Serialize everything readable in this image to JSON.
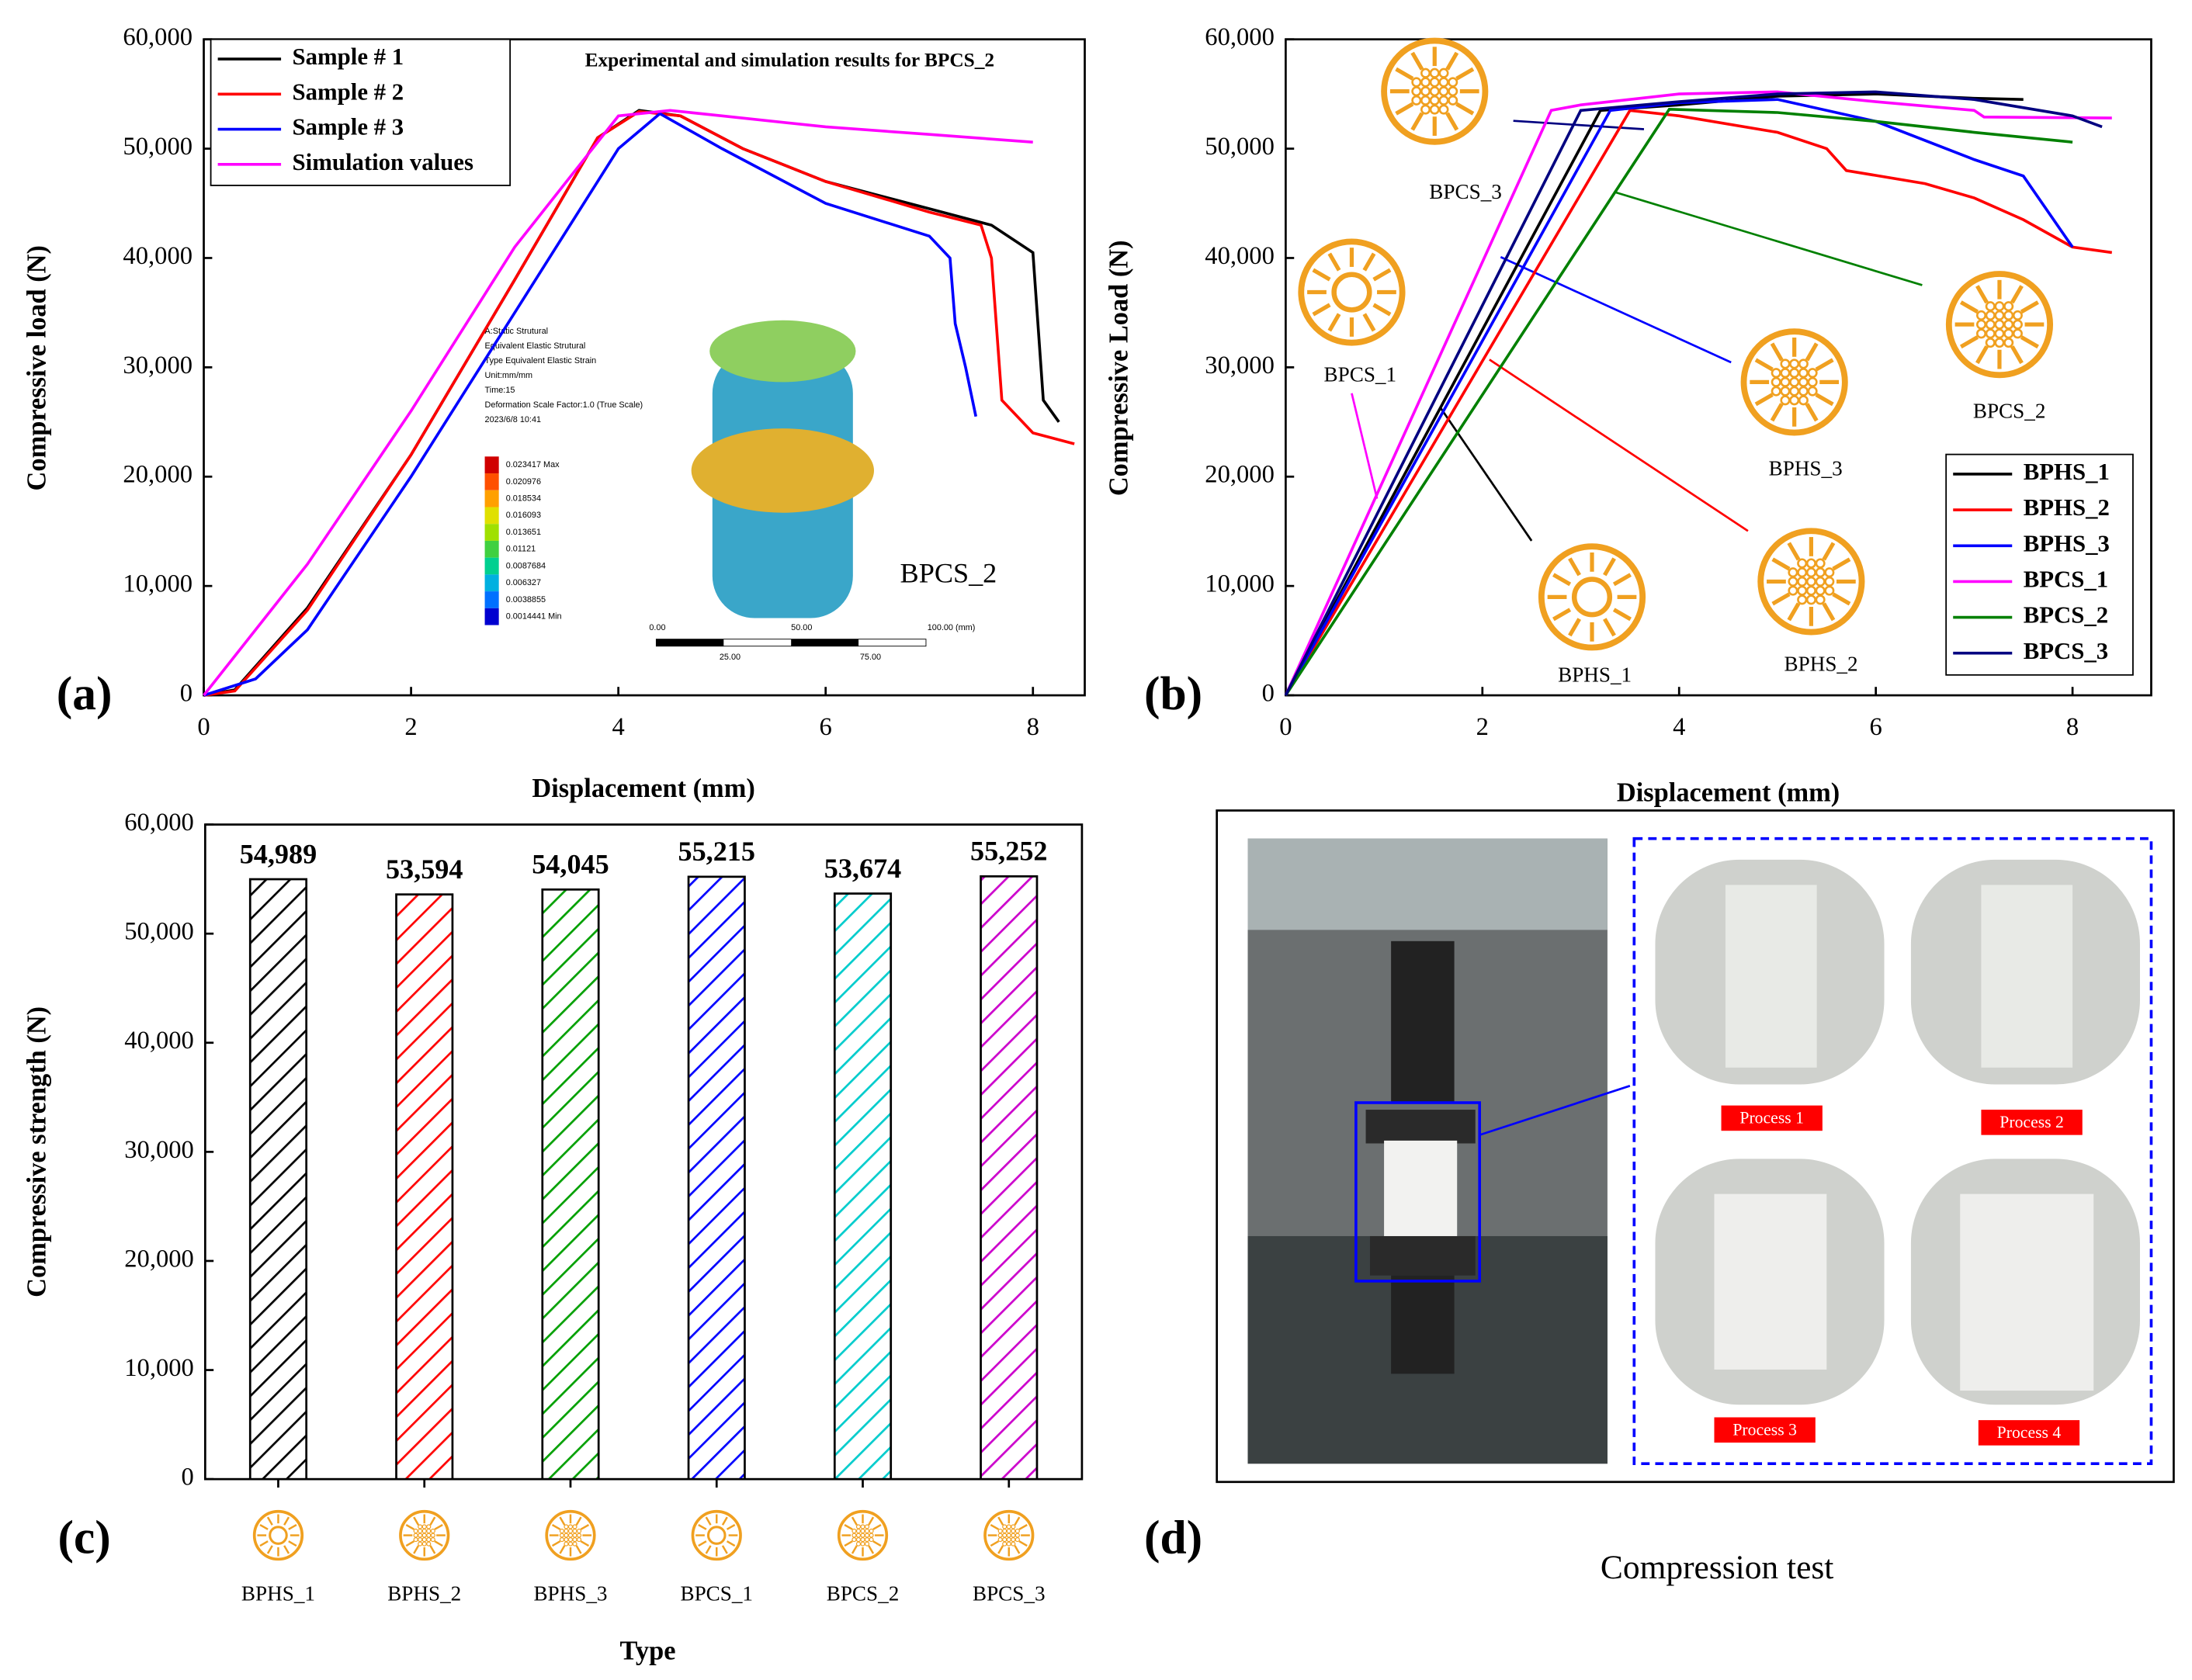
{
  "chart_data": [
    {
      "type": "line",
      "panel_label": "(a)",
      "title": "Experimental and simulation results for BPCS_2",
      "xlabel": "Displacement (mm)",
      "ylabel": "Compressive load (N)",
      "xlim": [
        0,
        8.5
      ],
      "xticks": [
        0,
        2,
        4,
        6,
        8
      ],
      "ylim": [
        0,
        60000
      ],
      "yticks": [
        0,
        {
          "value": 10000,
          "label": "10,000"
        },
        {
          "value": 20000,
          "label": "20,000"
        },
        {
          "value": 30000,
          "label": "30,000"
        },
        {
          "value": 40000,
          "label": "40,000"
        },
        {
          "value": 50000,
          "label": "50,000"
        },
        {
          "value": 60000,
          "label": "60,000"
        }
      ],
      "legend": "upper left",
      "annotations": [
        "BPCS_2"
      ],
      "inset_texts": [
        "A:Static Strutural",
        "Equivalent Elastic Strutural",
        "Type Equivalent Elastic Strain",
        "Unit:mm/mm",
        "Time:15",
        "Deformation Scale Factor:1.0 (True Scale)",
        "2023/6/8 10:41"
      ],
      "inset_scale": [
        "0.023417 Max",
        "0.020976",
        "0.018534",
        "0.016093",
        "0.013651",
        "0.01121",
        "0.0087684",
        "0.006327",
        "0.0038855",
        "0.0014441 Min"
      ],
      "inset_ruler": [
        "0.00",
        "50.00",
        "100.00 (mm)",
        "25.00",
        "75.00"
      ],
      "series": [
        {
          "name": "Sample # 1",
          "color": "#000000",
          "x": [
            0,
            0.3,
            1,
            2,
            3,
            3.8,
            4.2,
            4.6,
            5.2,
            6,
            7,
            7.6,
            8,
            8.1,
            8.25
          ],
          "values": [
            0,
            500,
            8000,
            22000,
            38000,
            51000,
            53500,
            53000,
            50000,
            47000,
            44500,
            43000,
            40500,
            27000,
            25000
          ]
        },
        {
          "name": "Sample # 2",
          "color": "#ff0000",
          "x": [
            0,
            0.3,
            1,
            2,
            3,
            3.8,
            4.2,
            4.6,
            5.2,
            6,
            7,
            7.5,
            7.6,
            7.7,
            8,
            8.4
          ],
          "values": [
            0,
            400,
            7800,
            22000,
            38000,
            51000,
            53400,
            53000,
            50000,
            47000,
            44200,
            43000,
            40000,
            27000,
            24000,
            23000
          ]
        },
        {
          "name": "Sample # 3",
          "color": "#0000ff",
          "x": [
            0,
            0.5,
            1,
            2,
            3,
            4,
            4.4,
            5,
            6,
            7,
            7.2,
            7.25,
            7.35,
            7.45
          ],
          "values": [
            0,
            1500,
            6000,
            20000,
            35000,
            50000,
            53200,
            50000,
            45000,
            42000,
            40000,
            34000,
            30000,
            25500
          ]
        },
        {
          "name": "Simulation values",
          "color": "#ff00ff",
          "x": [
            0,
            1,
            2,
            3,
            4,
            4.5,
            5,
            6,
            7,
            8
          ],
          "values": [
            0,
            12000,
            26000,
            41000,
            53000,
            53500,
            53000,
            52000,
            51300,
            50600
          ]
        }
      ]
    },
    {
      "type": "line",
      "panel_label": "(b)",
      "xlabel": "Displacement (mm)",
      "ylabel": "Compressive Load (N)",
      "xlim": [
        0,
        8.8
      ],
      "xticks": [
        0,
        2,
        4,
        6,
        8
      ],
      "ylim": [
        0,
        60000
      ],
      "yticks": [
        0,
        {
          "value": 10000,
          "label": "10,000"
        },
        {
          "value": 20000,
          "label": "20,000"
        },
        {
          "value": 30000,
          "label": "30,000"
        },
        {
          "value": 40000,
          "label": "40,000"
        },
        {
          "value": 50000,
          "label": "50,000"
        },
        {
          "value": 60000,
          "label": "60,000"
        }
      ],
      "legend": "lower right",
      "annotations": [
        "BPCS_3",
        "BPCS_1",
        "BPHS_3",
        "BPCS_2",
        "BPHS_1",
        "BPHS_2"
      ],
      "series": [
        {
          "name": "BPHS_1",
          "color": "#000000",
          "x": [
            0,
            3.2,
            4,
            5,
            6,
            7,
            7.5
          ],
          "values": [
            0,
            53500,
            54000,
            54800,
            55000,
            54600,
            54500
          ]
        },
        {
          "name": "BPHS_2",
          "color": "#ff0000",
          "x": [
            0,
            3.5,
            4,
            5,
            5.5,
            5.7,
            6.5,
            7,
            7.5,
            8,
            8.4
          ],
          "values": [
            0,
            53500,
            53000,
            51500,
            50000,
            48000,
            46800,
            45500,
            43500,
            41000,
            40500
          ]
        },
        {
          "name": "BPHS_3",
          "color": "#0000ff",
          "x": [
            0,
            3.3,
            4,
            5,
            6,
            7,
            7.5,
            8
          ],
          "values": [
            0,
            53500,
            54200,
            54500,
            52500,
            49000,
            47500,
            41000
          ]
        },
        {
          "name": "BPCS_1",
          "color": "#ff00ff",
          "x": [
            0,
            2.7,
            3,
            4,
            5,
            6,
            7,
            7.1,
            8.4
          ],
          "values": [
            0,
            53500,
            54000,
            55000,
            55200,
            54300,
            53500,
            52900,
            52800
          ]
        },
        {
          "name": "BPCS_2",
          "color": "#008000",
          "x": [
            0,
            3.9,
            5,
            6,
            7,
            8
          ],
          "values": [
            0,
            53600,
            53300,
            52500,
            51500,
            50600
          ]
        },
        {
          "name": "BPCS_3",
          "color": "#000080",
          "x": [
            0,
            3,
            4,
            5,
            6,
            7,
            8,
            8.3
          ],
          "values": [
            0,
            53500,
            54300,
            55000,
            55200,
            54500,
            53000,
            52000
          ]
        }
      ]
    },
    {
      "type": "bar",
      "panel_label": "(c)",
      "xlabel": "Type",
      "ylabel": "Compressive strength (N)",
      "categories": [
        "BPHS_1",
        "BPHS_2",
        "BPHS_3",
        "BPCS_1",
        "BPCS_2",
        "BPCS_3"
      ],
      "values": [
        54989,
        53594,
        54045,
        55215,
        53674,
        55252
      ],
      "value_labels": [
        "54,989",
        "53,594",
        "54,045",
        "55,215",
        "53,674",
        "55,252"
      ],
      "colors": [
        "#000000",
        "#ff0000",
        "#00a000",
        "#0000ff",
        "#00cccc",
        "#cc00cc"
      ],
      "ylim": [
        0,
        60000
      ],
      "yticks": [
        0,
        {
          "value": 10000,
          "label": "10,000"
        },
        {
          "value": 20000,
          "label": "20,000"
        },
        {
          "value": 30000,
          "label": "30,000"
        },
        {
          "value": 40000,
          "label": "40,000"
        },
        {
          "value": 50000,
          "label": "50,000"
        },
        {
          "value": 60000,
          "label": "60,000"
        }
      ],
      "hatch": true
    }
  ],
  "photo_panel": {
    "panel_label": "(d)",
    "caption": "Compression test",
    "processes": [
      "Process 1",
      "Process 2",
      "Process 3",
      "Process 4"
    ]
  }
}
